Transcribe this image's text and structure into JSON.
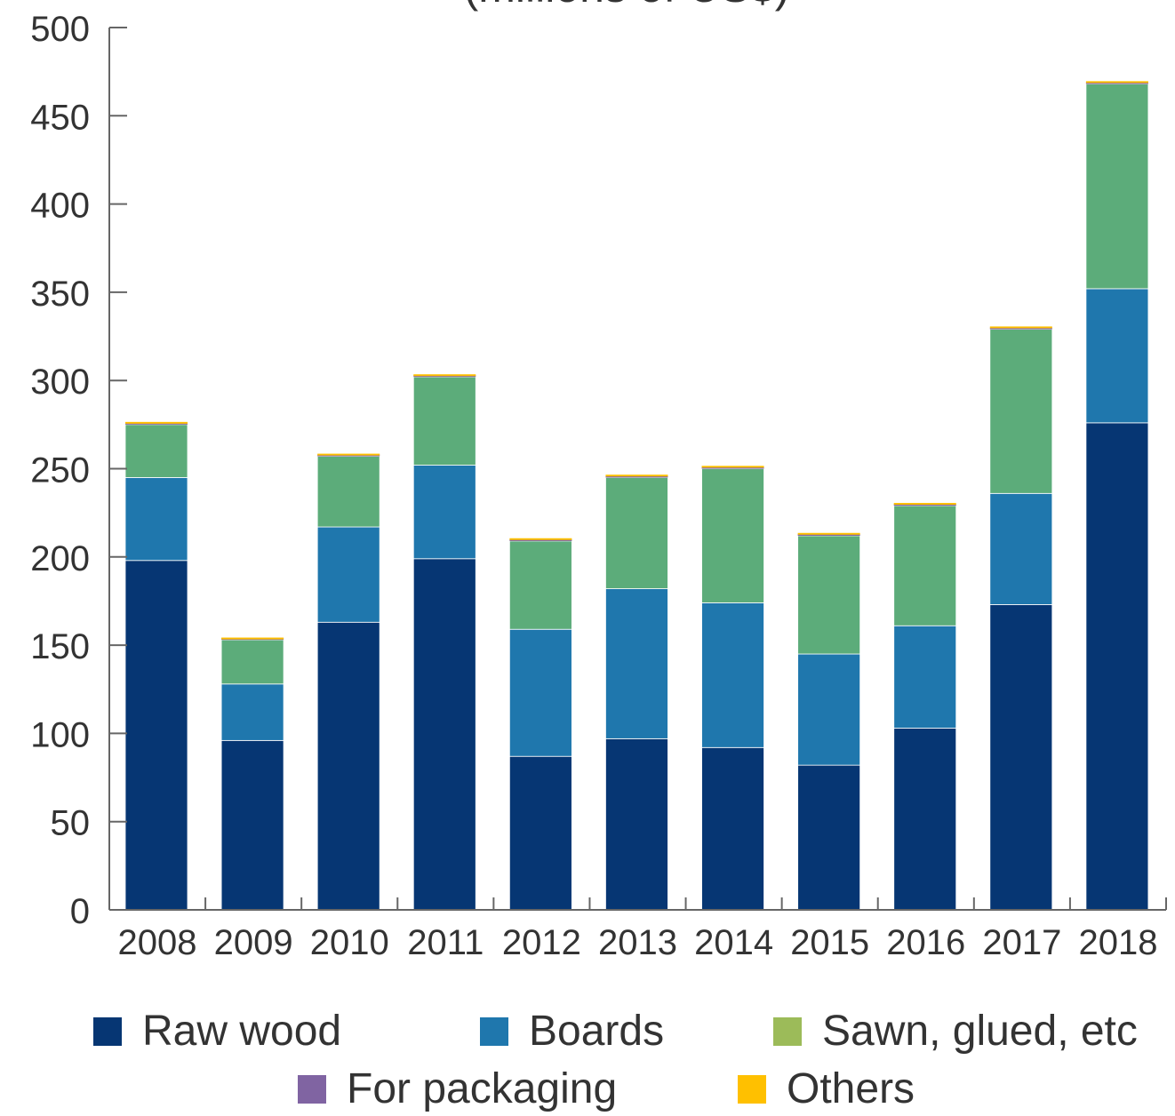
{
  "chart_data": {
    "type": "bar",
    "stacked": true,
    "title": "(millions of US$)",
    "xlabel": "",
    "ylabel": "",
    "categories": [
      "2008",
      "2009",
      "2010",
      "2011",
      "2012",
      "2013",
      "2014",
      "2015",
      "2016",
      "2017",
      "2018"
    ],
    "ylim": [
      0,
      500
    ],
    "yticks": [
      0,
      50,
      100,
      150,
      200,
      250,
      300,
      350,
      400,
      450,
      500
    ],
    "grid": false,
    "legend_position": "bottom",
    "series": [
      {
        "name": "Raw wood",
        "color": "#063673",
        "values": [
          198,
          96,
          163,
          199,
          87,
          97,
          92,
          82,
          103,
          173,
          276
        ]
      },
      {
        "name": "Boards",
        "color": "#1f77ad",
        "values": [
          47,
          32,
          54,
          53,
          72,
          85,
          82,
          63,
          58,
          63,
          76
        ]
      },
      {
        "name": "Sawn, glued, etc",
        "color": "#5cac7a",
        "legend_color": "#9cbb59",
        "values": [
          30,
          25,
          40,
          50,
          50,
          63,
          76,
          67,
          68,
          93,
          116
        ]
      },
      {
        "name": "For packaging",
        "color": "#8064a2",
        "values": [
          0.5,
          0.3,
          0.5,
          0.5,
          0.6,
          0.6,
          0.6,
          0.6,
          0.6,
          0.6,
          0.6
        ]
      },
      {
        "name": "Others",
        "color": "#ffc000",
        "values": [
          0.3,
          0.3,
          0.3,
          0.5,
          0.3,
          0.3,
          0.3,
          0.3,
          0.3,
          0.3,
          0.3
        ]
      }
    ]
  }
}
